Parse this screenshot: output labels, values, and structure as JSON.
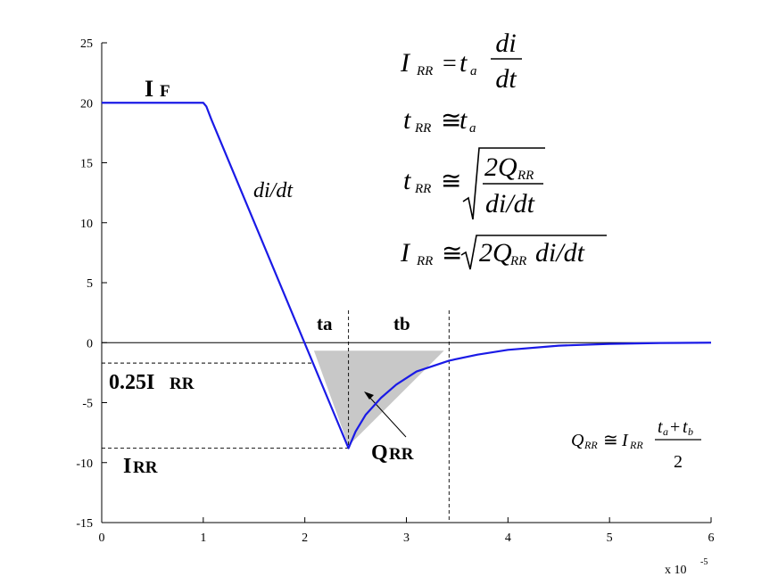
{
  "chart_data": {
    "type": "line",
    "x": [
      0,
      1,
      1.03,
      1.08,
      2.43,
      2.5,
      2.6,
      2.75,
      2.9,
      3.1,
      3.42,
      3.7,
      4,
      4.5,
      5,
      5.5,
      6
    ],
    "series": [
      {
        "color": "#1a1ae6",
        "values": [
          20,
          20,
          19.7,
          18.6,
          -8.8,
          -7.4,
          -6.0,
          -4.6,
          -3.5,
          -2.4,
          -1.5,
          -1.0,
          -0.6,
          -0.25,
          -0.1,
          -0.03,
          0
        ]
      }
    ],
    "xlim": [
      0,
      6
    ],
    "ylim": [
      -15,
      25
    ],
    "xticks": [
      0,
      1,
      2,
      3,
      4,
      5,
      6
    ],
    "yticks": [
      -15,
      -10,
      -5,
      0,
      5,
      10,
      15,
      20,
      25
    ],
    "x_multiplier": {
      "base": "x 10",
      "exponent": "-5"
    },
    "dashed_hlines": [
      -1.7,
      -8.8
    ],
    "dashed_vlines": [
      2.43,
      3.42
    ],
    "shaded_region": {
      "x": [
        2.09,
        3.37,
        2.43
      ],
      "y": [
        -0.67,
        -0.67,
        -8.6
      ],
      "color": "#c8c8c8"
    },
    "annotations": {
      "if": {
        "text": "I",
        "small": "F"
      },
      "didt": "di/dt",
      "ta": "ta",
      "tb": "tb",
      "quarter_irr": {
        "text": "0.25I",
        "small": "RR"
      },
      "irr": {
        "text": "I",
        "small": "RR"
      },
      "qrr": {
        "text": "Q",
        "small": "RR"
      }
    },
    "formulas": [
      {
        "lhs": "I",
        "lhs_sub": "RR",
        "rel": "=",
        "rhs": "t",
        "rhs_sub": "a",
        "num": "di",
        "den": "dt"
      },
      {
        "lhs": "t",
        "lhs_sub": "RR",
        "rel": "≅",
        "rhs": "t",
        "rhs_sub": "a"
      },
      {
        "lhs": "t",
        "lhs_sub": "RR",
        "rel": "≅",
        "num": "2Q",
        "num_sub": "RR",
        "den": "di/dt"
      },
      {
        "lhs": "I",
        "lhs_sub": "RR",
        "rel": "≅",
        "rhs": "2Q",
        "rhs_sub": "RR",
        "rhs2": "di/dt"
      },
      {
        "lhs": "Q",
        "lhs_sub": "RR",
        "rel": "≅",
        "rhs": "I",
        "rhs_sub": "RR",
        "num": "t",
        "num_sub": "a",
        "plus": "+",
        "num2": "t",
        "num2_sub": "b",
        "den": "2"
      }
    ]
  }
}
